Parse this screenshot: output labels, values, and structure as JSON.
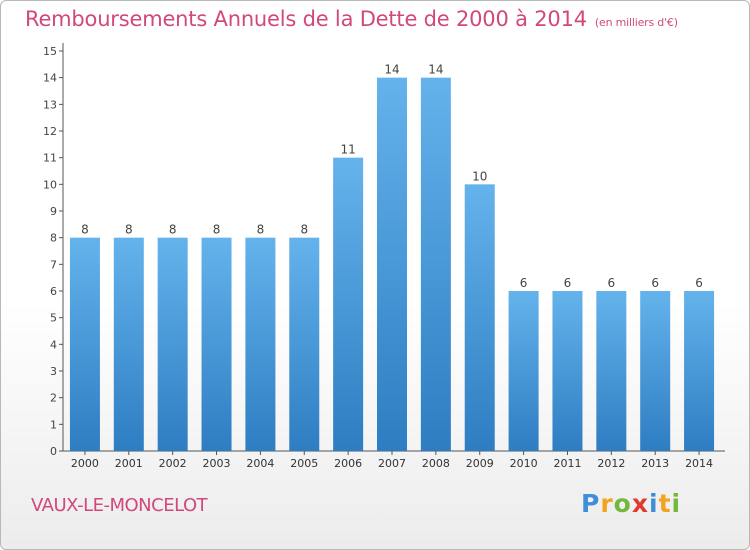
{
  "header": {
    "title": "Remboursements Annuels de la Dette de 2000 à 2014",
    "subtitle": "(en milliers d'€)"
  },
  "footer": {
    "commune": "VAUX-LE-MONCELOT",
    "logo_text": [
      "P",
      "r",
      "o",
      "x",
      "i",
      "t",
      "i"
    ]
  },
  "colors": {
    "title": "#d2487c",
    "bar_top": "#64b3ec",
    "bar_bottom": "#2e7dc2"
  },
  "chart_data": {
    "type": "bar",
    "categories": [
      "2000",
      "2001",
      "2002",
      "2003",
      "2004",
      "2005",
      "2006",
      "2007",
      "2008",
      "2009",
      "2010",
      "2011",
      "2012",
      "2013",
      "2014"
    ],
    "values": [
      8,
      8,
      8,
      8,
      8,
      8,
      11,
      14,
      14,
      10,
      6,
      6,
      6,
      6,
      6
    ],
    "data_labels": [
      "8",
      "8",
      "8",
      "8",
      "8",
      "8",
      "11",
      "14",
      "14",
      "10",
      "6",
      "6",
      "6",
      "6",
      "6"
    ],
    "yticks": [
      "0",
      "1",
      "2",
      "3",
      "4",
      "5",
      "6",
      "7",
      "8",
      "9",
      "10",
      "11",
      "12",
      "13",
      "14",
      "15"
    ],
    "ylim": [
      0,
      15
    ],
    "grid": false,
    "legend": "none"
  }
}
